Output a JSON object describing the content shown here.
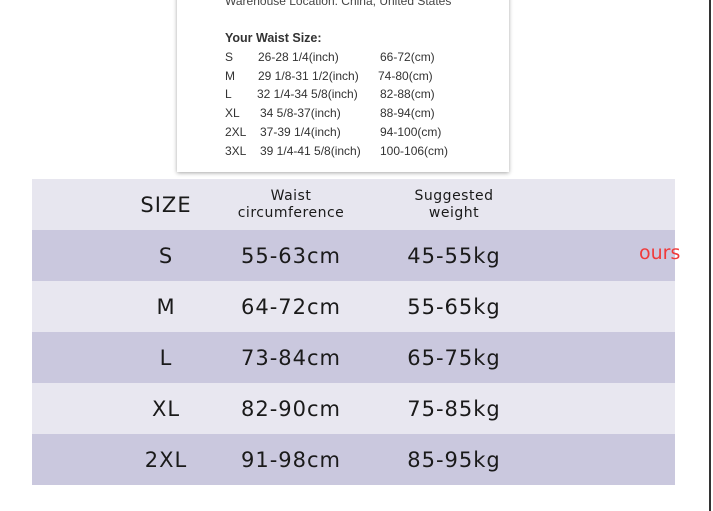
{
  "popup": {
    "location": "Warehouse Location: China, United States",
    "title": "Your Waist Size:",
    "rows": [
      {
        "size": "S",
        "inch": "26-28 1/4(inch)",
        "cm": "66-72(cm)"
      },
      {
        "size": "M",
        "inch": "29 1/8-31 1/2(inch)",
        "cm": "74-80(cm)"
      },
      {
        "size": "L",
        "inch": "32 1/4-34 5/8(inch)",
        "cm": "82-88(cm)"
      },
      {
        "size": "XL",
        "inch": "34 5/8-37(inch)",
        "cm": "88-94(cm)"
      },
      {
        "size": "2XL",
        "inch": "37-39 1/4(inch)",
        "cm": "94-100(cm)"
      },
      {
        "size": "3XL",
        "inch": "39 1/4-41 5/8(inch)",
        "cm": "100-106(cm)"
      }
    ]
  },
  "table": {
    "headers": [
      "SIZE",
      "Waist\ncircumference",
      "Suggested\nweight"
    ],
    "rows": [
      [
        "S",
        "55-63cm",
        "45-55kg"
      ],
      [
        "M",
        "64-72cm",
        "55-65kg"
      ],
      [
        "L",
        "73-84cm",
        "65-75kg"
      ],
      [
        "XL",
        "82-90cm",
        "75-85kg"
      ],
      [
        "2XL",
        "91-98cm",
        "85-95kg"
      ]
    ]
  },
  "overlay_text": "ours",
  "colors": {
    "header": "#e7e6ef",
    "dark_row": "#cac8de",
    "light_row": "#e8e7f0",
    "overlay": "#f03a3a"
  }
}
